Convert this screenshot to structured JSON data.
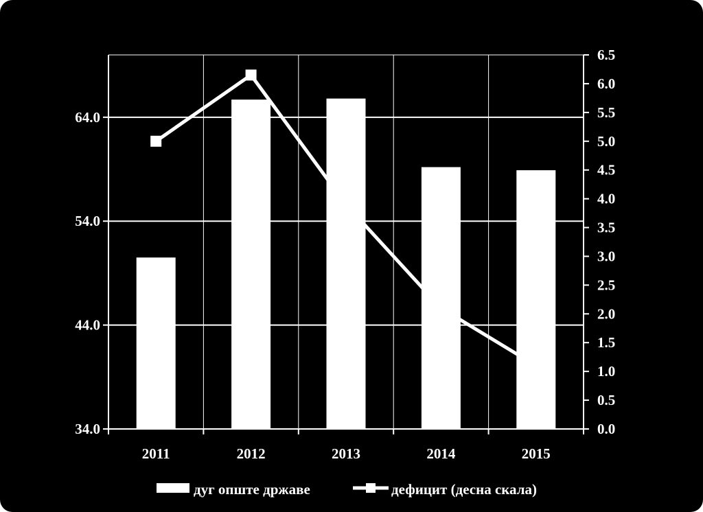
{
  "chart_data": {
    "type": "bar+line",
    "categories": [
      "2011",
      "2012",
      "2013",
      "2014",
      "2015"
    ],
    "series": [
      {
        "name": "дуг опште државе",
        "type": "bar",
        "axis": "left",
        "values": [
          50.5,
          65.7,
          65.8,
          59.2,
          58.9
        ]
      },
      {
        "name": "дефицит (десна скала)",
        "type": "line",
        "marker": "square",
        "axis": "right",
        "values": [
          5.0,
          6.15,
          3.9,
          2.1,
          1.1
        ]
      }
    ],
    "left_axis": {
      "min": 34,
      "max": 70,
      "ticks": [
        "34.0",
        "44.0",
        "54.0",
        "64.0"
      ]
    },
    "right_axis": {
      "min": 0,
      "max": 6.5,
      "ticks": [
        "0.0",
        "0.5",
        "1.0",
        "1.5",
        "2.0",
        "2.5",
        "3.0",
        "3.5",
        "4.0",
        "4.5",
        "5.0",
        "5.5",
        "6.0",
        "6.5"
      ]
    },
    "grid": true,
    "legend": "bottom",
    "colors": {
      "background": "#000000",
      "bars": "#ffffff",
      "line": "#ffffff",
      "grid": "#ffffff"
    }
  }
}
